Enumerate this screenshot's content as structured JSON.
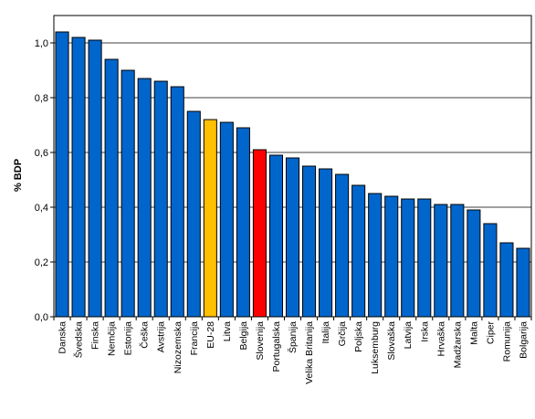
{
  "chart_data": {
    "type": "bar",
    "ylabel": "% BDP",
    "ylim": [
      0,
      1.0
    ],
    "yticks": [
      "0,0",
      "0,2",
      "0,4",
      "0,6",
      "0,8",
      "1,0"
    ],
    "grid": true,
    "legend": "none",
    "categories": [
      "Danska",
      "Švedska",
      "Finska",
      "Nemčija",
      "Estonija",
      "Češka",
      "Avstrija",
      "Nizozemska",
      "Francija",
      "EU-28",
      "Litva",
      "Belgija",
      "Slovenija",
      "Portugalska",
      "Španija",
      "Velika Britanija",
      "Italija",
      "Grčija",
      "Poljska",
      "Luksemburg",
      "Slovaška",
      "Latvija",
      "Irska",
      "Hrvaška",
      "Madžarska",
      "Malta",
      "Ciper",
      "Romunija",
      "Bolgarija"
    ],
    "values": [
      1.04,
      1.02,
      1.01,
      0.94,
      0.9,
      0.87,
      0.86,
      0.84,
      0.75,
      0.72,
      0.71,
      0.69,
      0.61,
      0.59,
      0.58,
      0.55,
      0.54,
      0.52,
      0.48,
      0.45,
      0.44,
      0.43,
      0.43,
      0.41,
      0.41,
      0.39,
      0.34,
      0.27,
      0.25
    ],
    "colors": {
      "default": "#0066CC",
      "highlight": {
        "EU-28": "#FFC000",
        "Slovenija": "#FF0000"
      },
      "grid": "#000000"
    }
  }
}
